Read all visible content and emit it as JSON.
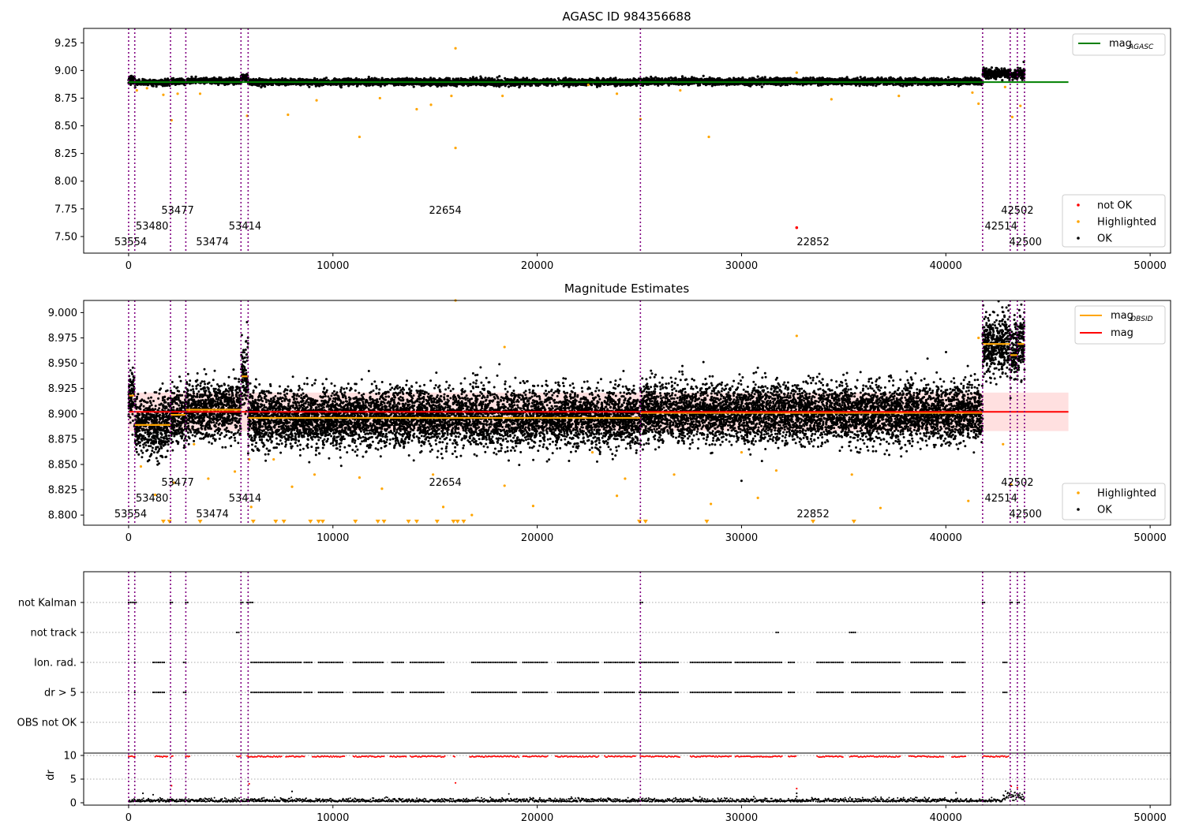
{
  "figure": {
    "panel1_title": "AGASC ID 984356688",
    "panel2_title": "Magnitude Estimates"
  },
  "colors": {
    "ok": "#000000",
    "highlighted": "#ffa500",
    "not_ok": "#ff0000",
    "mag_agasc": "#008000",
    "mag_obsid": "#ffa500",
    "mag": "#ff0000",
    "obsid_line": "#800080",
    "band": "#ffcccc"
  },
  "chart_data": [
    {
      "type": "scatter",
      "title": "AGASC ID 984356688",
      "xlabel": "",
      "ylabel": "",
      "xlim": [
        -2200,
        51000
      ],
      "ylim": [
        7.35,
        9.38
      ],
      "xticks": [
        0,
        10000,
        20000,
        30000,
        40000,
        50000
      ],
      "yticks": [
        "7.50",
        "7.75",
        "8.00",
        "8.25",
        "8.50",
        "8.75",
        "9.00",
        "9.25"
      ],
      "grid": false,
      "obsid_lines": [
        0,
        300,
        2050,
        2800,
        5500,
        5850,
        25050,
        41800,
        43150,
        43500,
        43850
      ],
      "obsid_labels": [
        {
          "text": "53554",
          "x": 100,
          "row": 0
        },
        {
          "text": "53480",
          "x": 1150,
          "row": 1
        },
        {
          "text": "53477",
          "x": 2400,
          "row": 2
        },
        {
          "text": "53474",
          "x": 4100,
          "row": 0
        },
        {
          "text": "53414",
          "x": 5700,
          "row": 1
        },
        {
          "text": "22654",
          "x": 15500,
          "row": 2
        },
        {
          "text": "22852",
          "x": 33500,
          "row": 0
        },
        {
          "text": "42514",
          "x": 42700,
          "row": 1
        },
        {
          "text": "42502",
          "x": 43500,
          "row": 2
        },
        {
          "text": "42500",
          "x": 43900,
          "row": 0
        }
      ],
      "ok_segments": [
        {
          "x": [
            0,
            300
          ],
          "center": 8.92,
          "spread": 0.02
        },
        {
          "x": [
            300,
            2050
          ],
          "center": 8.89,
          "spread": 0.012
        },
        {
          "x": [
            2050,
            2800
          ],
          "center": 8.9,
          "spread": 0.012
        },
        {
          "x": [
            2800,
            5500
          ],
          "center": 8.905,
          "spread": 0.012
        },
        {
          "x": [
            5500,
            5850
          ],
          "center": 8.93,
          "spread": 0.02
        },
        {
          "x": [
            5850,
            25050
          ],
          "center": 8.895,
          "spread": 0.014
        },
        {
          "x": [
            25050,
            41800
          ],
          "center": 8.9,
          "spread": 0.014
        },
        {
          "x": [
            41800,
            43150
          ],
          "center": 8.97,
          "spread": 0.02
        },
        {
          "x": [
            43150,
            43500
          ],
          "center": 8.955,
          "spread": 0.02
        },
        {
          "x": [
            43500,
            43850
          ],
          "center": 8.97,
          "spread": 0.025
        }
      ],
      "highlighted_points": [
        [
          400,
          8.82
        ],
        [
          900,
          8.84
        ],
        [
          1700,
          8.78
        ],
        [
          2100,
          8.55
        ],
        [
          2400,
          8.79
        ],
        [
          3500,
          8.79
        ],
        [
          5800,
          8.59
        ],
        [
          7800,
          8.6
        ],
        [
          9200,
          8.73
        ],
        [
          11300,
          8.4
        ],
        [
          12300,
          8.75
        ],
        [
          14100,
          8.65
        ],
        [
          14800,
          8.69
        ],
        [
          16000,
          8.3
        ],
        [
          16000,
          9.2
        ],
        [
          15800,
          8.77
        ],
        [
          18300,
          8.77
        ],
        [
          22500,
          8.87
        ],
        [
          23900,
          8.79
        ],
        [
          25050,
          8.56
        ],
        [
          27000,
          8.82
        ],
        [
          28400,
          8.4
        ],
        [
          32700,
          8.98
        ],
        [
          34400,
          8.74
        ],
        [
          37700,
          8.77
        ],
        [
          41300,
          8.8
        ],
        [
          41600,
          8.7
        ],
        [
          43250,
          8.58
        ],
        [
          43650,
          8.68
        ],
        [
          42900,
          8.85
        ]
      ],
      "not_ok_points": [
        [
          32700,
          7.58
        ]
      ],
      "series": [
        {
          "name": "mag$_{AGASC}$",
          "value": 8.895,
          "x": [
            0,
            46000
          ]
        }
      ],
      "legends": [
        {
          "placement": "top-right",
          "entries": [
            "mag",
            "AGASC"
          ]
        },
        {
          "placement": "bottom-right",
          "entries": [
            "not OK",
            "Highlighted",
            "OK"
          ]
        }
      ]
    },
    {
      "type": "scatter",
      "title": "Magnitude Estimates",
      "xlabel": "",
      "ylabel": "",
      "xlim": [
        -2200,
        51000
      ],
      "ylim": [
        8.79,
        9.012
      ],
      "xticks": [
        0,
        10000,
        20000,
        30000,
        40000,
        50000
      ],
      "yticks": [
        "8.800",
        "8.825",
        "8.850",
        "8.875",
        "8.900",
        "8.925",
        "8.950",
        "8.975",
        "9.000"
      ],
      "grid": false,
      "mag": 8.902,
      "mag_band": [
        8.883,
        8.921
      ],
      "obsid_mags": [
        {
          "x": [
            0,
            300
          ],
          "value": 8.918
        },
        {
          "x": [
            300,
            2050
          ],
          "value": 8.889
        },
        {
          "x": [
            2050,
            2800
          ],
          "value": 8.899
        },
        {
          "x": [
            2800,
            5500
          ],
          "value": 8.904
        },
        {
          "x": [
            5500,
            5850
          ],
          "value": 8.937
        },
        {
          "x": [
            5850,
            25050
          ],
          "value": 8.896
        },
        {
          "x": [
            25050,
            41800
          ],
          "value": 8.901
        },
        {
          "x": [
            41800,
            43150
          ],
          "value": 8.969
        },
        {
          "x": [
            43150,
            43500
          ],
          "value": 8.958
        },
        {
          "x": [
            43500,
            43850
          ],
          "value": 8.969
        }
      ],
      "highlighted_points": [
        [
          600,
          8.848
        ],
        [
          1300,
          8.82
        ],
        [
          2200,
          8.832
        ],
        [
          3200,
          8.87
        ],
        [
          3900,
          8.836
        ],
        [
          5200,
          8.843
        ],
        [
          5900,
          8.855
        ],
        [
          6000,
          8.808
        ],
        [
          7100,
          8.855
        ],
        [
          8000,
          8.828
        ],
        [
          9100,
          8.84
        ],
        [
          11300,
          8.837
        ],
        [
          12400,
          8.826
        ],
        [
          14900,
          8.84
        ],
        [
          15400,
          8.808
        ],
        [
          16000,
          9.012
        ],
        [
          16800,
          8.8
        ],
        [
          18400,
          8.829
        ],
        [
          18400,
          8.966
        ],
        [
          19800,
          8.809
        ],
        [
          22700,
          8.862
        ],
        [
          23900,
          8.819
        ],
        [
          24300,
          8.836
        ],
        [
          26700,
          8.84
        ],
        [
          28500,
          8.811
        ],
        [
          30000,
          8.862
        ],
        [
          30800,
          8.817
        ],
        [
          31700,
          8.844
        ],
        [
          32700,
          8.977
        ],
        [
          35400,
          8.84
        ],
        [
          36800,
          8.807
        ],
        [
          41100,
          8.814
        ],
        [
          41600,
          8.975
        ],
        [
          43200,
          8.83
        ],
        [
          42800,
          8.87
        ]
      ],
      "clipped_points_x": [
        1700,
        2000,
        3500,
        6100,
        7200,
        7600,
        8900,
        9300,
        9500,
        11100,
        12200,
        12500,
        13700,
        14100,
        15100,
        15900,
        16100,
        16400,
        25000,
        25300,
        28300,
        33500,
        35500
      ],
      "band_x": [
        0,
        46000
      ],
      "legends": [
        {
          "placement": "top-right",
          "entries": [
            "mag",
            "OBSID",
            "mag"
          ]
        },
        {
          "placement": "bottom-right",
          "entries": [
            "Highlighted",
            "OK"
          ]
        }
      ]
    },
    {
      "type": "scatter",
      "title": "",
      "xlabel": "",
      "ylabel": "dr",
      "xlim": [
        -2200,
        51000
      ],
      "ylim": [
        0,
        10.5
      ],
      "xticks": [
        0,
        10000,
        20000,
        30000,
        40000,
        50000
      ],
      "yticks": [
        "0",
        "5",
        "10"
      ],
      "flag_rows": [
        "not Kalman",
        "not track",
        "Ion. rad.",
        "dr > 5",
        "OBS not OK"
      ],
      "flag_spans": {
        "not Kalman": [
          [
            0,
            400
          ],
          [
            2050,
            2200
          ],
          [
            2800,
            2950
          ],
          [
            5500,
            5600
          ],
          [
            5800,
            6100
          ],
          [
            25050,
            25150
          ],
          [
            41800,
            41900
          ],
          [
            43150,
            43300
          ],
          [
            43500,
            43650
          ]
        ],
        "not track": [
          [
            5300,
            5400
          ],
          [
            31700,
            31800
          ],
          [
            35300,
            35600
          ]
        ],
        "Ion. rad.": [
          [
            300,
            350
          ],
          [
            1200,
            1800
          ],
          [
            2700,
            2800
          ],
          [
            6000,
            8500
          ],
          [
            8600,
            9000
          ],
          [
            9300,
            10500
          ],
          [
            11000,
            12500
          ],
          [
            12900,
            13500
          ],
          [
            13800,
            15500
          ],
          [
            16800,
            19000
          ],
          [
            19300,
            20500
          ],
          [
            21000,
            23000
          ],
          [
            23300,
            24800
          ],
          [
            25000,
            26900
          ],
          [
            27500,
            29500
          ],
          [
            29700,
            32000
          ],
          [
            32300,
            32600
          ],
          [
            33700,
            35000
          ],
          [
            35400,
            37800
          ],
          [
            38300,
            39900
          ],
          [
            40300,
            41000
          ],
          [
            42800,
            43050
          ]
        ],
        "dr > 5": [
          [
            300,
            350
          ],
          [
            1200,
            1800
          ],
          [
            2700,
            2800
          ],
          [
            6000,
            8500
          ],
          [
            8600,
            9000
          ],
          [
            9300,
            10500
          ],
          [
            11000,
            12500
          ],
          [
            12900,
            13500
          ],
          [
            13800,
            15500
          ],
          [
            16800,
            19000
          ],
          [
            19300,
            20500
          ],
          [
            21000,
            23000
          ],
          [
            23300,
            24800
          ],
          [
            25000,
            26900
          ],
          [
            27500,
            29500
          ],
          [
            29700,
            32000
          ],
          [
            32300,
            32600
          ],
          [
            33700,
            35000
          ],
          [
            35400,
            37800
          ],
          [
            38300,
            39900
          ],
          [
            40300,
            41000
          ],
          [
            42800,
            43050
          ]
        ],
        "OBS not OK": []
      },
      "dr_red_spans": [
        [
          0,
          300
        ],
        [
          1300,
          1900
        ],
        [
          2100,
          2200
        ],
        [
          2800,
          3000
        ],
        [
          5300,
          5500
        ],
        [
          5800,
          7500
        ],
        [
          7700,
          8600
        ],
        [
          9000,
          10600
        ],
        [
          11000,
          12500
        ],
        [
          12800,
          13600
        ],
        [
          13800,
          15500
        ],
        [
          15900,
          16000
        ],
        [
          16700,
          19100
        ],
        [
          19300,
          20500
        ],
        [
          20900,
          23000
        ],
        [
          23300,
          24800
        ],
        [
          25050,
          27000
        ],
        [
          27500,
          29500
        ],
        [
          29700,
          32000
        ],
        [
          32300,
          32700
        ],
        [
          33700,
          35000
        ],
        [
          35300,
          37800
        ],
        [
          38200,
          39900
        ],
        [
          40300,
          41000
        ],
        [
          41800,
          43100
        ]
      ],
      "dr_extra_points": [
        [
          16000,
          4.2
        ],
        [
          2100,
          3.6
        ],
        [
          5900,
          4.0
        ],
        [
          32700,
          3.0
        ],
        [
          32700,
          2.0
        ],
        [
          32700,
          1.3
        ],
        [
          43200,
          3.5
        ],
        [
          43500,
          3.2
        ],
        [
          700,
          2.0
        ],
        [
          1200,
          1.7
        ],
        [
          8000,
          2.4
        ],
        [
          40500,
          2.1
        ]
      ]
    }
  ]
}
